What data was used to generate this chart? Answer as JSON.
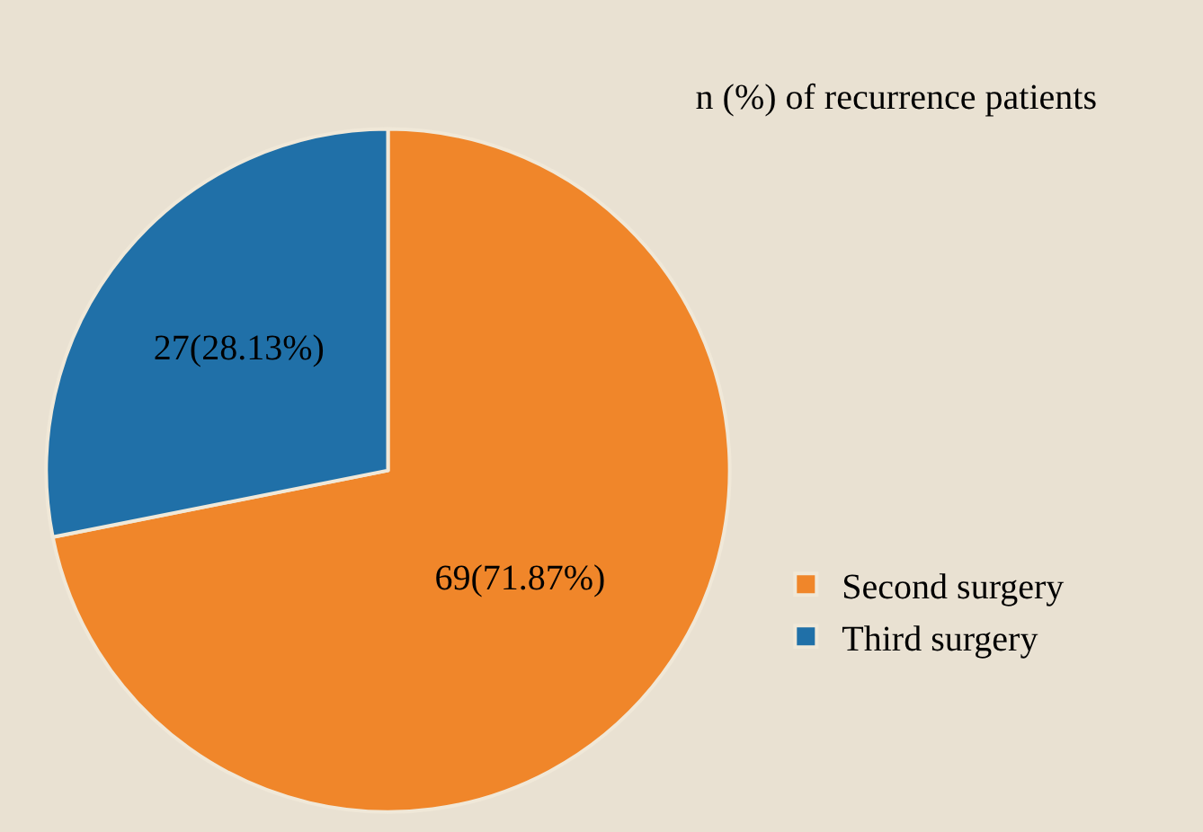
{
  "chart_data": {
    "type": "pie",
    "title": "n (%) of recurrence patients",
    "categories": [
      "Second surgery",
      "Third surgery"
    ],
    "values": [
      69,
      27
    ],
    "value_labels": [
      "69(71.87%)",
      "27(28.13%)"
    ],
    "colors": [
      "#f0862a",
      "#2070a8"
    ],
    "legend": "bottom right"
  }
}
